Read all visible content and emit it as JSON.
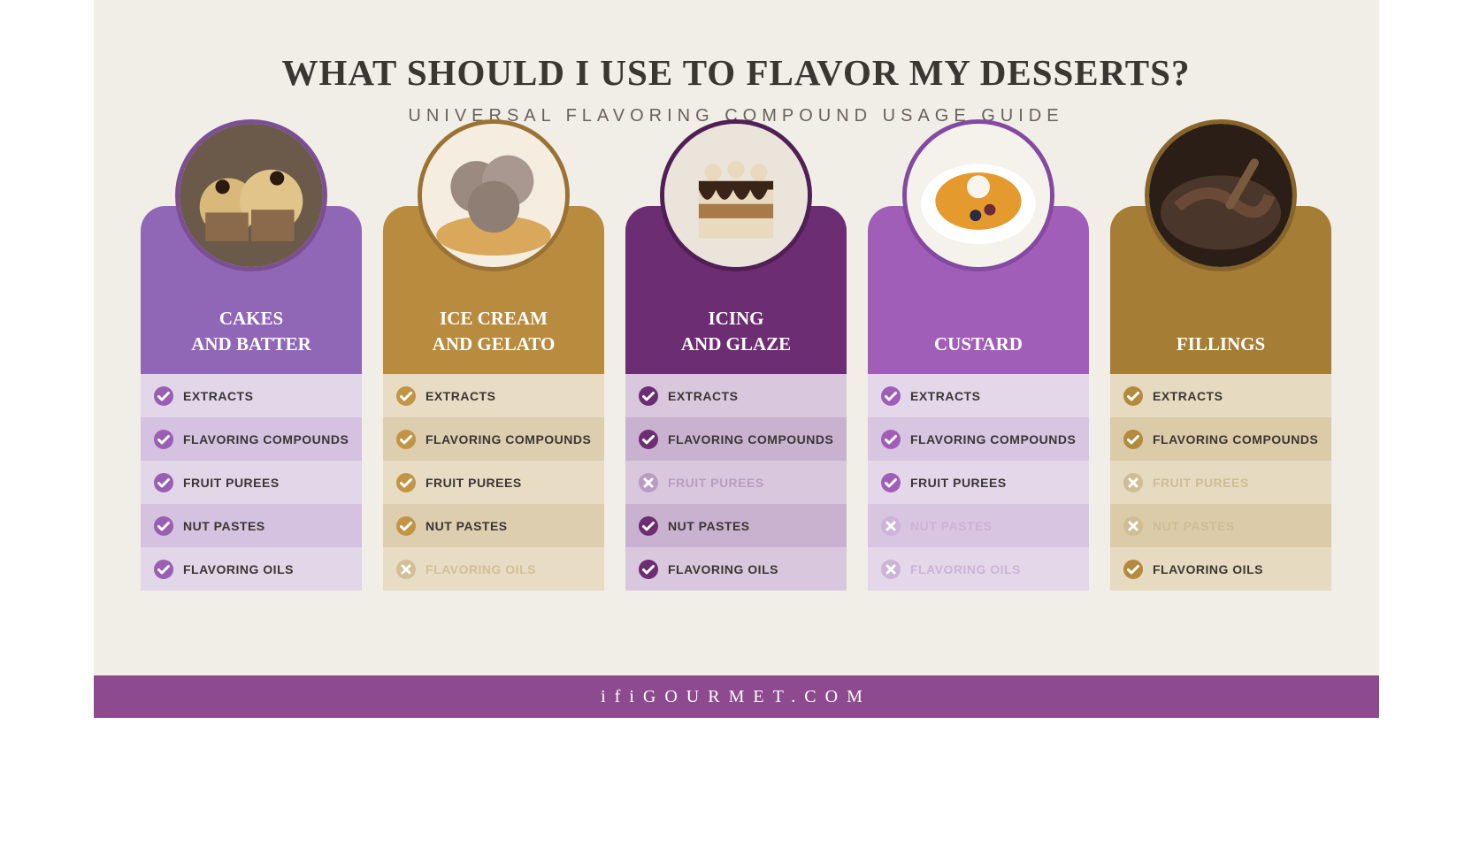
{
  "title": "WHAT SHOULD I USE TO FLAVOR MY DESSERTS?",
  "title_fontsize": 41,
  "subtitle": "UNIVERSAL FLAVORING COMPOUND USAGE GUIDE",
  "subtitle_fontsize": 20,
  "background_color": "#f1ede7",
  "title_color": "#3a3632",
  "subtitle_color": "#6a625a",
  "footer_text": "ifiGOURMET.COM",
  "footer_bg": "#8e4a8e",
  "footer_fontsize": 20,
  "row_labels": [
    "EXTRACTS",
    "FLAVORING COMPOUNDS",
    "FRUIT PUREES",
    "NUT PASTES",
    "FLAVORING OILS"
  ],
  "row_fontsize": 14,
  "icon_size": 24,
  "header_fontsize": 21,
  "columns": [
    {
      "title_line1": "CAKES",
      "title_line2": "AND BATTER",
      "header_bg": "#9066b6",
      "circle_border": "#7c4e93",
      "accent": "#9a5fb3",
      "row_bg_light": "#e2d6e9",
      "row_bg_dark": "#d4c2e0",
      "text_color": "#3a3632",
      "muted_text": "#c9b4d8",
      "checks": [
        true,
        true,
        true,
        true,
        true
      ],
      "food": "cupcakes"
    },
    {
      "title_line1": "ICE CREAM",
      "title_line2": "AND GELATO",
      "header_bg": "#b88b3f",
      "circle_border": "#9a7334",
      "accent": "#c29445",
      "row_bg_light": "#e8dcc5",
      "row_bg_dark": "#ddceb0",
      "text_color": "#3a3632",
      "muted_text": "#d2bf96",
      "checks": [
        true,
        true,
        true,
        true,
        false
      ],
      "food": "icecream"
    },
    {
      "title_line1": "ICING",
      "title_line2": "AND GLAZE",
      "header_bg": "#6c2d73",
      "circle_border": "#4f1f55",
      "accent": "#6c2d73",
      "row_bg_light": "#d9c8dd",
      "row_bg_dark": "#c9b2d0",
      "text_color": "#3a3632",
      "muted_text": "#b99cc4",
      "checks": [
        true,
        true,
        false,
        true,
        true
      ],
      "food": "cake"
    },
    {
      "title_line1": "CUSTARD",
      "title_line2": "",
      "header_bg": "#a15eb8",
      "circle_border": "#8449a0",
      "accent": "#a15eb8",
      "row_bg_light": "#e5d7ea",
      "row_bg_dark": "#d8c5e1",
      "text_color": "#3a3632",
      "muted_text": "#cbb4d8",
      "checks": [
        true,
        true,
        true,
        false,
        false
      ],
      "food": "custard"
    },
    {
      "title_line1": "FILLINGS",
      "title_line2": "",
      "header_bg": "#a67d35",
      "circle_border": "#876529",
      "accent": "#b48a3e",
      "row_bg_light": "#e6dac0",
      "row_bg_dark": "#dbcba9",
      "text_color": "#3a3632",
      "muted_text": "#cfbd93",
      "checks": [
        true,
        true,
        false,
        false,
        true
      ],
      "food": "chocolate"
    }
  ]
}
